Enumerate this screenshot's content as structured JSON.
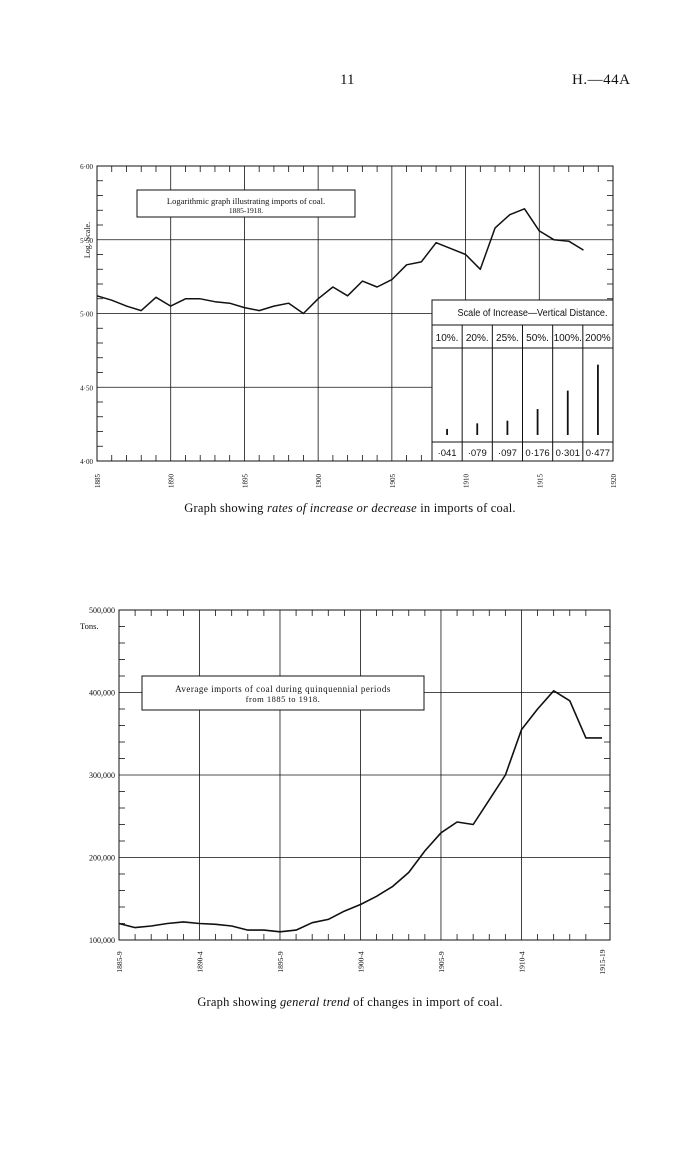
{
  "page": {
    "number": "11",
    "code": "H.—44A"
  },
  "chart_data": [
    {
      "type": "line",
      "title": "Logarithmic graph illustrating imports of coal.",
      "subtitle": "1885-1918.",
      "ylabel": "Log. Scale.",
      "xlabel": "",
      "x_scale": "linear",
      "y_scale": "log10 values",
      "xlim": [
        1885,
        1920
      ],
      "ylim": [
        4.0,
        6.0
      ],
      "grid": true,
      "y_ticks": [
        {
          "value": 4.0,
          "label": "4·00"
        },
        {
          "value": 4.5,
          "label": "4·50"
        },
        {
          "value": 5.0,
          "label": "5·00"
        },
        {
          "value": 5.5,
          "label": "5·50"
        },
        {
          "value": 6.0,
          "label": "6·00"
        }
      ],
      "x_ticks": [
        {
          "value": 1885,
          "label": "1885"
        },
        {
          "value": 1890,
          "label": "1890"
        },
        {
          "value": 1895,
          "label": "1895"
        },
        {
          "value": 1900,
          "label": "1900"
        },
        {
          "value": 1905,
          "label": "1905"
        },
        {
          "value": 1910,
          "label": "1910"
        },
        {
          "value": 1915,
          "label": "1915"
        },
        {
          "value": 1920,
          "label": "1920"
        }
      ],
      "x": [
        1885,
        1886,
        1887,
        1888,
        1889,
        1890,
        1891,
        1892,
        1893,
        1894,
        1895,
        1896,
        1897,
        1898,
        1899,
        1900,
        1901,
        1902,
        1903,
        1904,
        1905,
        1906,
        1907,
        1908,
        1909,
        1910,
        1911,
        1912,
        1913,
        1914,
        1915,
        1916,
        1917,
        1918
      ],
      "values": [
        5.12,
        5.09,
        5.05,
        5.02,
        5.11,
        5.05,
        5.1,
        5.1,
        5.08,
        5.07,
        5.04,
        5.02,
        5.05,
        5.07,
        5.0,
        5.1,
        5.18,
        5.12,
        5.22,
        5.18,
        5.23,
        5.33,
        5.35,
        5.48,
        5.44,
        5.4,
        5.3,
        5.58,
        5.67,
        5.71,
        5.56,
        5.5,
        5.49,
        5.43
      ],
      "scale_legend": {
        "title": "Scale of Increase—Vertical Distance.",
        "items": [
          {
            "label": "10%.",
            "value": "·041",
            "log": 0.041
          },
          {
            "label": "20%.",
            "value": "·079",
            "log": 0.079
          },
          {
            "label": "25%.",
            "value": "·097",
            "log": 0.097
          },
          {
            "label": "50%.",
            "value": "0·176",
            "log": 0.176
          },
          {
            "label": "100%.",
            "value": "0·301",
            "log": 0.301
          },
          {
            "label": "200%",
            "value": "0·477",
            "log": 0.477
          }
        ]
      }
    },
    {
      "type": "line",
      "title": "Average imports of coal during quinquennial periods",
      "subtitle": "from 1885 to 1918.",
      "ylabel": "Tons.",
      "xlabel": "",
      "x_scale": "linear",
      "ylim": [
        100000,
        500000
      ],
      "grid": true,
      "y_ticks": [
        {
          "value": 100000,
          "label": "100,000"
        },
        {
          "value": 200000,
          "label": "200,000"
        },
        {
          "value": 300000,
          "label": "300,000"
        },
        {
          "value": 400000,
          "label": "400,000"
        },
        {
          "value": 500000,
          "label": "500,000"
        }
      ],
      "x_ticks": [
        {
          "value": 1885,
          "label": "1885-9"
        },
        {
          "value": 1890,
          "label": "1890-4"
        },
        {
          "value": 1895,
          "label": "1895-9"
        },
        {
          "value": 1900,
          "label": "1900-4"
        },
        {
          "value": 1905,
          "label": "1905-9"
        },
        {
          "value": 1910,
          "label": "1910-4"
        },
        {
          "value": 1915,
          "label": "1915-19"
        }
      ],
      "x": [
        1885,
        1886,
        1887,
        1888,
        1889,
        1890,
        1891,
        1892,
        1893,
        1894,
        1895,
        1896,
        1897,
        1898,
        1899,
        1900,
        1901,
        1902,
        1903,
        1904,
        1905,
        1906,
        1907,
        1908,
        1909,
        1910,
        1911,
        1912,
        1913,
        1914,
        1915
      ],
      "values": [
        120000,
        115000,
        117000,
        120000,
        122000,
        120000,
        119000,
        117000,
        112000,
        112000,
        110000,
        112000,
        121000,
        125000,
        135000,
        143000,
        153000,
        165000,
        182000,
        208000,
        230000,
        243000,
        240000,
        270000,
        300000,
        355000,
        380000,
        402000,
        390000,
        345000,
        345000
      ]
    }
  ],
  "captions": {
    "top": {
      "pre": "Graph showing ",
      "em": "rates of increase or decrease",
      "post": " in imports of coal."
    },
    "bottom": {
      "pre": "Graph showing ",
      "em": "general trend",
      "post": " of changes in import of coal."
    }
  }
}
